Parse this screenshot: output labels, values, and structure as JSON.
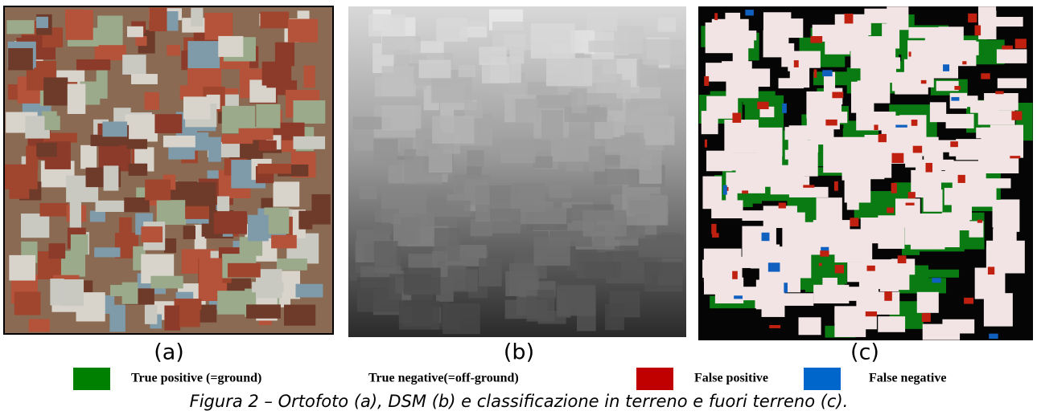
{
  "panels": [
    {
      "label": "(a)"
    },
    {
      "label": "(b)"
    },
    {
      "label": "(c)"
    }
  ],
  "legend": [
    {
      "name": "True positive (=ground)",
      "color": "#008000"
    },
    {
      "name": "True negative(=off-ground)",
      "color": "#ffffff"
    },
    {
      "name": "False positive",
      "color": "#c00000"
    },
    {
      "name": "False negative",
      "color": "#0066cc"
    }
  ],
  "caption": "Figura 2 – Ortofoto (a), DSM (b) e classificazione in terreno e fuori terreno (c)."
}
